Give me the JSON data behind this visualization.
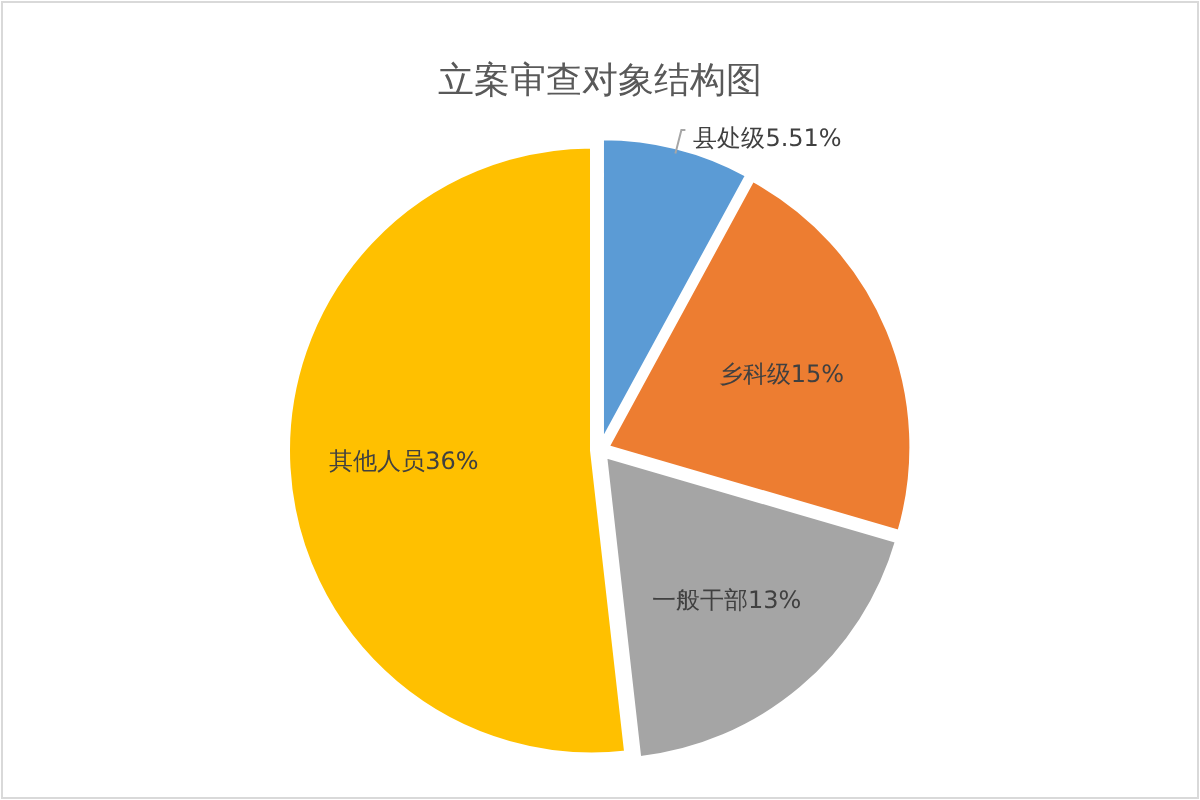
{
  "chart_data": {
    "type": "pie",
    "title": "立案审查对象结构图",
    "categories": [
      "县处级",
      "乡科级",
      "一般干部",
      "其他人员"
    ],
    "values": [
      5.51,
      15,
      13,
      36
    ],
    "value_labels": [
      "5.51%",
      "15%",
      "13%",
      "36%"
    ],
    "colors": [
      "#5b9bd5",
      "#ed7d31",
      "#a5a5a5",
      "#ffc000"
    ],
    "legend": false
  }
}
